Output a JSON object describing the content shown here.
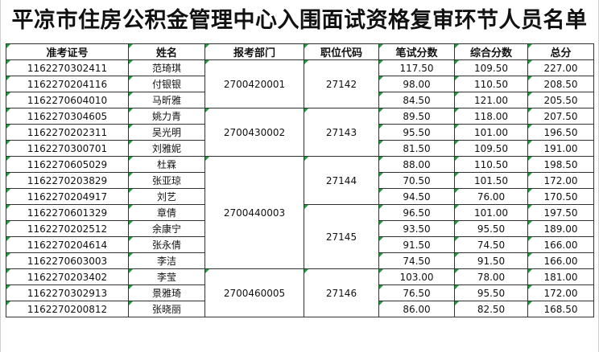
{
  "title": "平凉市住房公积金管理中心入围面试资格复审环节人员名单",
  "headers": [
    "准考证号",
    "姓名",
    "报考部门",
    "职位代码",
    "笔试分数",
    "综合分数",
    "总分"
  ],
  "depts": [
    "2700420001",
    "2700430002",
    "2700440003",
    "2700460005"
  ],
  "codes": [
    "27142",
    "27143",
    "27144",
    "27145",
    "27146"
  ],
  "rows": [
    {
      "id": "1162270302411",
      "name": "范琦琪",
      "written": "117.50",
      "combined": "109.50",
      "total": "227.00"
    },
    {
      "id": "1162270204116",
      "name": "付银银",
      "written": "98.00",
      "combined": "110.50",
      "total": "208.50"
    },
    {
      "id": "1162270604010",
      "name": "马昕雅",
      "written": "84.50",
      "combined": "121.00",
      "total": "205.50"
    },
    {
      "id": "1162270304605",
      "name": "姚力青",
      "written": "89.50",
      "combined": "118.00",
      "total": "207.50"
    },
    {
      "id": "1162270202311",
      "name": "吴光明",
      "written": "95.50",
      "combined": "101.00",
      "total": "196.50"
    },
    {
      "id": "1162270300701",
      "name": "刘雅妮",
      "written": "81.50",
      "combined": "109.50",
      "total": "191.00"
    },
    {
      "id": "1162270605029",
      "name": "杜霖",
      "written": "88.00",
      "combined": "110.50",
      "total": "198.50"
    },
    {
      "id": "1162270203829",
      "name": "张亚琼",
      "written": "70.50",
      "combined": "101.50",
      "total": "172.00"
    },
    {
      "id": "1162270204917",
      "name": "刘艺",
      "written": "94.50",
      "combined": "76.00",
      "total": "170.50"
    },
    {
      "id": "1162270601329",
      "name": "章倩",
      "written": "96.50",
      "combined": "101.00",
      "total": "197.50"
    },
    {
      "id": "1162270202512",
      "name": "余康宁",
      "written": "93.50",
      "combined": "95.50",
      "total": "189.00"
    },
    {
      "id": "1162270204614",
      "name": "张永倩",
      "written": "91.50",
      "combined": "74.50",
      "total": "166.00"
    },
    {
      "id": "1162270603003",
      "name": "李洁",
      "written": "74.50",
      "combined": "91.50",
      "total": "166.00"
    },
    {
      "id": "1162270203402",
      "name": "李莹",
      "written": "103.00",
      "combined": "78.00",
      "total": "181.00"
    },
    {
      "id": "1162270302913",
      "name": "景雅琦",
      "written": "76.50",
      "combined": "95.50",
      "total": "172.00"
    },
    {
      "id": "1162270200812",
      "name": "张晓丽",
      "written": "86.00",
      "combined": "82.50",
      "total": "168.50"
    }
  ]
}
